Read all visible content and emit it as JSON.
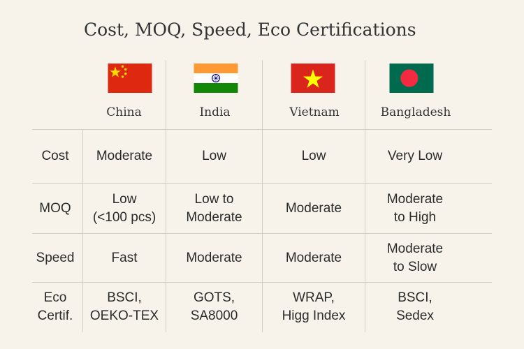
{
  "title": "Cost, MOQ, Speed, Eco Certifications",
  "countries": [
    {
      "name": "China",
      "flag": "china-flag-icon"
    },
    {
      "name": "India",
      "flag": "india-flag-icon"
    },
    {
      "name": "Vietnam",
      "flag": "vietnam-flag-icon"
    },
    {
      "name": "Bangladesh",
      "flag": "bangladesh-flag-icon"
    }
  ],
  "rows": [
    {
      "label": "Cost",
      "values": [
        "Moderate",
        "Low",
        "Low",
        "Very Low"
      ]
    },
    {
      "label": "MOQ",
      "values": [
        "Low\n(<100 pcs)",
        "Low to\nModerate",
        "Moderate",
        "Moderate\nto High"
      ]
    },
    {
      "label": "Speed",
      "values": [
        "Fast",
        "Moderate",
        "Moderate",
        "Moderate\nto Slow"
      ]
    },
    {
      "label": "Eco\nCertif.",
      "values": [
        "BSCI,\nOEKO-TEX",
        "GOTS,\nSA8000",
        "WRAP,\nHigg Index",
        "BSCI,\nSedex"
      ]
    }
  ],
  "colors": {
    "background": "#f7f3ea",
    "grid": "#d3cec3",
    "china_red": "#de2910",
    "china_yellow": "#ffde00",
    "india_saffron": "#ff9933",
    "india_green": "#138808",
    "india_navy": "#000080",
    "vietnam_red": "#da251d",
    "vietnam_yellow": "#ffff00",
    "bangladesh_green": "#006a4e",
    "bangladesh_red": "#f42a41"
  }
}
